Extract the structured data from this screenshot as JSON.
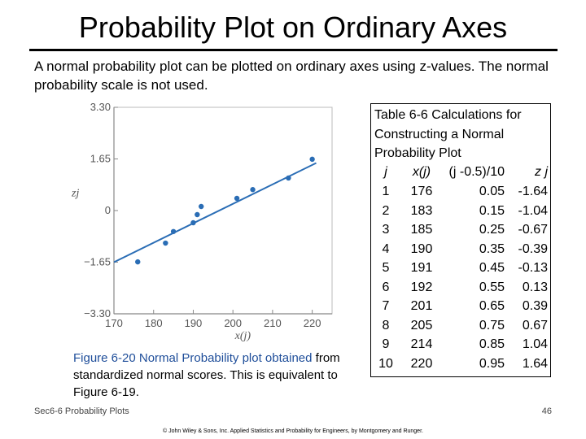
{
  "slide": {
    "title": "Probability Plot on Ordinary Axes",
    "intro": "A normal probability plot can be plotted on ordinary axes using z-values.  The normal probability scale is not used.",
    "caption_lead": "Figure 6-20  Normal Probability plot obtained",
    "caption_rest": "from standardized normal scores.  This is equivalent to Figure 6-19.",
    "footer_left": "Sec6-6 Probability Plots",
    "page_number": "46",
    "copyright": "© John Wiley & Sons, Inc.  Applied Statistics and Probability for Engineers, by Montgomery and Runger."
  },
  "table": {
    "title": "Table 6-6  Calculations for Constructing a Normal Probability Plot",
    "headers": [
      "j",
      "x(j)",
      "(j -0.5)/10",
      "z j"
    ],
    "rows": [
      [
        "1",
        "176",
        "0.05",
        "-1.64"
      ],
      [
        "2",
        "183",
        "0.15",
        "-1.04"
      ],
      [
        "3",
        "185",
        "0.25",
        "-0.67"
      ],
      [
        "4",
        "190",
        "0.35",
        "-0.39"
      ],
      [
        "5",
        "191",
        "0.45",
        "-0.13"
      ],
      [
        "6",
        "192",
        "0.55",
        "0.13"
      ],
      [
        "7",
        "201",
        "0.65",
        "0.39"
      ],
      [
        "8",
        "205",
        "0.75",
        "0.67"
      ],
      [
        "9",
        "214",
        "0.85",
        "1.04"
      ],
      [
        "10",
        "220",
        "0.95",
        "1.64"
      ]
    ]
  },
  "chart_data": {
    "type": "scatter",
    "title": "",
    "xlabel": "x(j)",
    "ylabel": "zj",
    "xlim": [
      170,
      225
    ],
    "ylim": [
      -3.3,
      3.3
    ],
    "x_ticks": [
      170,
      180,
      190,
      200,
      210,
      220
    ],
    "y_ticks": [
      3.3,
      1.65,
      0,
      -1.65,
      -3.3
    ],
    "y_tick_labels": [
      "3.30",
      "1.65",
      "0",
      "−1.65",
      "−3.30"
    ],
    "grid": false,
    "series": [
      {
        "x": [
          176,
          183,
          185,
          190,
          191,
          192,
          201,
          205,
          214,
          220
        ],
        "y": [
          -1.64,
          -1.04,
          -0.67,
          -0.39,
          -0.13,
          0.13,
          0.39,
          0.67,
          1.04,
          1.64
        ]
      }
    ],
    "fit_line": {
      "x": [
        170,
        221
      ],
      "y": [
        -1.65,
        1.52
      ]
    },
    "colors": {
      "points": "#2a6db5",
      "line": "#2a6db5",
      "axes": "#888888",
      "labels": "#555555"
    }
  }
}
